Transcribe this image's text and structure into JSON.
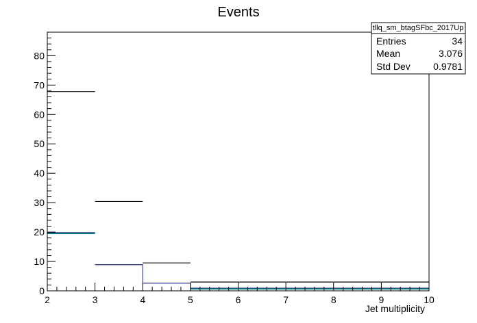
{
  "chart_data": {
    "type": "histogram",
    "title": "Events",
    "xlabel": "Jet multiplicity",
    "ylabel": "",
    "xlim": [
      2,
      10
    ],
    "ylim": [
      0,
      88
    ],
    "xticks": [
      "2",
      "3",
      "4",
      "5",
      "6",
      "7",
      "8",
      "9",
      "10"
    ],
    "yticks": [
      "0",
      "10",
      "20",
      "30",
      "40",
      "50",
      "60",
      "70",
      "80"
    ],
    "series": [
      {
        "color": "#000000",
        "bins": [
          {
            "x0": 2,
            "x1": 3,
            "y": 67.8
          },
          {
            "x0": 3,
            "x1": 4,
            "y": 30.4
          },
          {
            "x0": 4,
            "x1": 5,
            "y": 9.5
          },
          {
            "x0": 5,
            "x1": 6,
            "y": 3.0
          },
          {
            "x0": 6,
            "x1": 7,
            "y": 3.0
          },
          {
            "x0": 7,
            "x1": 8,
            "y": 3.0
          },
          {
            "x0": 8,
            "x1": 9,
            "y": 3.0
          },
          {
            "x0": 9,
            "x1": 10,
            "y": 3.0
          }
        ]
      },
      {
        "color": "#1a237e",
        "bins": [
          {
            "x0": 2,
            "x1": 3,
            "y": 19.8
          },
          {
            "x0": 3,
            "x1": 4,
            "y": 8.9
          },
          {
            "x0": 4,
            "x1": 5,
            "y": 2.6
          },
          {
            "x0": 5,
            "x1": 6,
            "y": 0.9
          },
          {
            "x0": 6,
            "x1": 7,
            "y": 0.9
          },
          {
            "x0": 7,
            "x1": 8,
            "y": 0.9
          },
          {
            "x0": 8,
            "x1": 9,
            "y": 0.9
          },
          {
            "x0": 9,
            "x1": 10,
            "y": 0.9
          }
        ]
      },
      {
        "color": "#00897b",
        "bins": [
          {
            "x0": 2,
            "x1": 3,
            "y": 19.5
          },
          {
            "x0": 5,
            "x1": 6,
            "y": 0.6
          },
          {
            "x0": 6,
            "x1": 7,
            "y": 0.6
          },
          {
            "x0": 7,
            "x1": 8,
            "y": 0.6
          },
          {
            "x0": 8,
            "x1": 9,
            "y": 0.6
          },
          {
            "x0": 9,
            "x1": 10,
            "y": 0.6
          }
        ]
      }
    ],
    "stats_box": {
      "title": "tllq_sm_btagSFbc_2017Up",
      "rows": [
        {
          "label": "Entries",
          "value": "34"
        },
        {
          "label": "Mean",
          "value": "3.076"
        },
        {
          "label": "Std Dev",
          "value": "0.9781"
        }
      ]
    }
  }
}
